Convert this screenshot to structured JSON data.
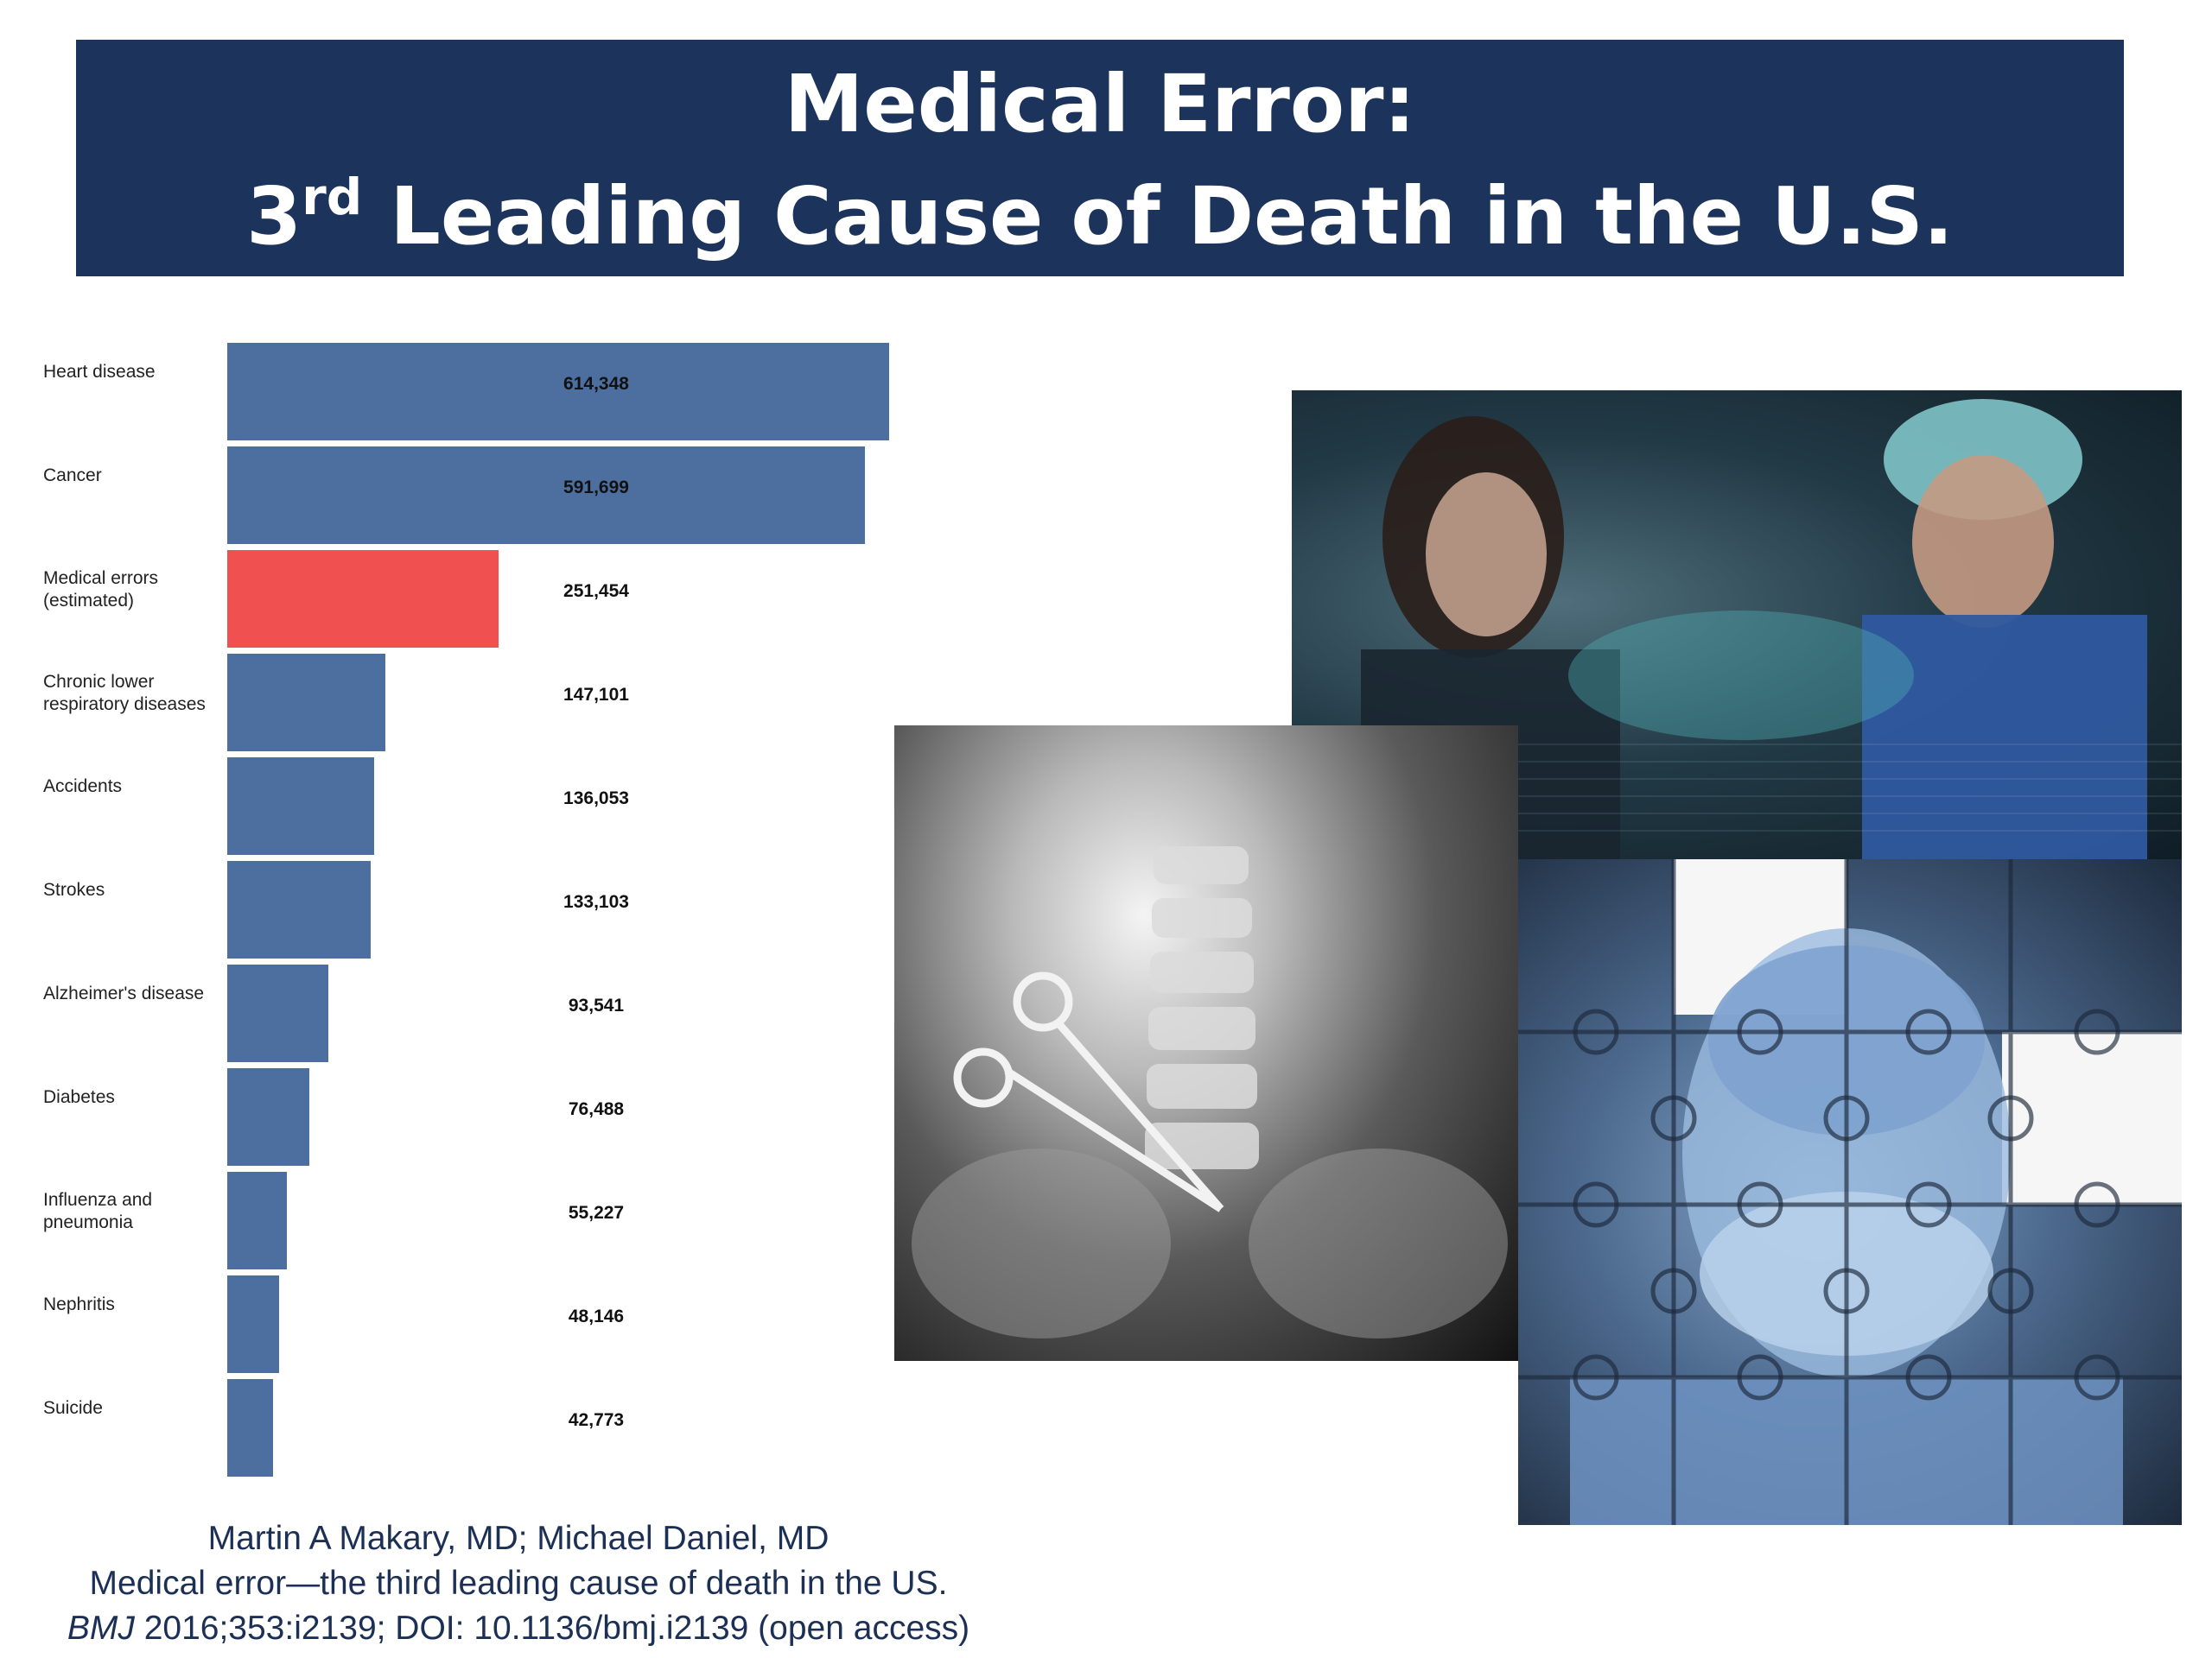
{
  "title": {
    "line1": "Medical Error:",
    "line2_prefix": "3",
    "line2_superscript": "rd",
    "line2_rest": " Leading Cause of Death in the U.S."
  },
  "colors": {
    "banner": "#1c345b",
    "bar": "#4d6fa0",
    "highlight_bar": "#f05050",
    "citation": "#1c2f55"
  },
  "chart_data": {
    "type": "bar",
    "orientation": "horizontal",
    "categories": [
      [
        "Heart disease"
      ],
      [
        "Cancer"
      ],
      [
        "Medical errors",
        "(estimated)"
      ],
      [
        "Chronic lower",
        "respiratory diseases"
      ],
      [
        "Accidents"
      ],
      [
        "Strokes"
      ],
      [
        "Alzheimer's disease"
      ],
      [
        "Diabetes"
      ],
      [
        "Influenza and",
        "pneumonia"
      ],
      [
        "Nephritis"
      ],
      [
        "Suicide"
      ]
    ],
    "values": [
      614348,
      591699,
      251454,
      147101,
      136053,
      133103,
      93541,
      76488,
      55227,
      48146,
      42773
    ],
    "value_labels": [
      "614,348",
      "591,699",
      "251,454",
      "147,101",
      "136,053",
      "133,103",
      "93,541",
      "76,488",
      "55,227",
      "48,146",
      "42,773"
    ],
    "highlight_index": 2,
    "xlim": [
      0,
      614348
    ],
    "grid": false,
    "legend": "none"
  },
  "images": [
    {
      "name": "surgical-team-photo",
      "depicts": "surgical-team"
    },
    {
      "name": "xray-forceps-photo",
      "depicts": "xray-with-forceps"
    },
    {
      "name": "puzzle-surgeon-photo",
      "depicts": "puzzle-surgeon"
    }
  ],
  "citation": {
    "authors": "Martin A Makary, MD; Michael Daniel, MD",
    "title": "Medical error—the third leading cause of death in the US.",
    "journal": "BMJ",
    "details": " 2016;353:i2139; DOI: 10.1136/bmj.i2139 (open access)"
  }
}
